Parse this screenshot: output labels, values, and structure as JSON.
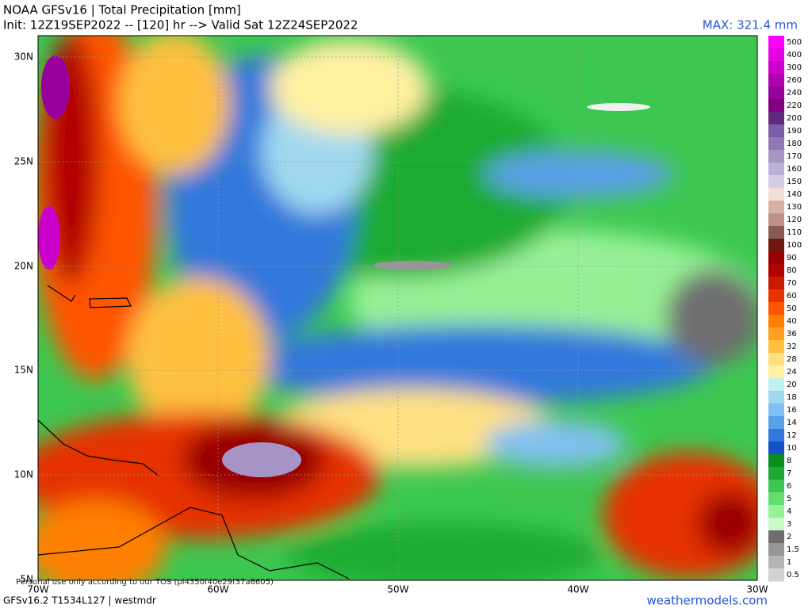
{
  "header": {
    "title": "NOAA GFSv16 | Total Precipitation [mm]",
    "subtitle": "Init: 12Z19SEP2022 -- [120] hr --> Valid Sat 12Z24SEP2022",
    "max": "MAX: 321.4 mm"
  },
  "lat_labels": [
    "30N",
    "25N",
    "20N",
    "15N",
    "10N",
    "5N"
  ],
  "lon_labels": [
    "70W",
    "60W",
    "50W",
    "40W",
    "30W"
  ],
  "colorbar": [
    {
      "label": "500",
      "color": "#ff00ff"
    },
    {
      "label": "400",
      "color": "#e600e6"
    },
    {
      "label": "300",
      "color": "#cc00cc"
    },
    {
      "label": "260",
      "color": "#b000b0"
    },
    {
      "label": "240",
      "color": "#990099"
    },
    {
      "label": "220",
      "color": "#800080"
    },
    {
      "label": "200",
      "color": "#5e2c7e"
    },
    {
      "label": "190",
      "color": "#7b5ea7"
    },
    {
      "label": "180",
      "color": "#8f79b5"
    },
    {
      "label": "170",
      "color": "#a694c6"
    },
    {
      "label": "160",
      "color": "#bcb0d6"
    },
    {
      "label": "150",
      "color": "#d4cce6"
    },
    {
      "label": "140",
      "color": "#f0ddd5"
    },
    {
      "label": "130",
      "color": "#d9b0a6"
    },
    {
      "label": "120",
      "color": "#c09088"
    },
    {
      "label": "110",
      "color": "#8a5a50"
    },
    {
      "label": "100",
      "color": "#6e1a10"
    },
    {
      "label": "90",
      "color": "#990000"
    },
    {
      "label": "80",
      "color": "#b30000"
    },
    {
      "label": "70",
      "color": "#cc1a00"
    },
    {
      "label": "60",
      "color": "#e63300"
    },
    {
      "label": "50",
      "color": "#ff5500"
    },
    {
      "label": "40",
      "color": "#ff7f00"
    },
    {
      "label": "36",
      "color": "#ffa020"
    },
    {
      "label": "32",
      "color": "#ffc040"
    },
    {
      "label": "28",
      "color": "#ffe080"
    },
    {
      "label": "24",
      "color": "#fff0a0"
    },
    {
      "label": "20",
      "color": "#c0f0f0"
    },
    {
      "label": "18",
      "color": "#a0d8f0"
    },
    {
      "label": "16",
      "color": "#80c0f0"
    },
    {
      "label": "14",
      "color": "#5aa0e8"
    },
    {
      "label": "12",
      "color": "#3278dc"
    },
    {
      "label": "10",
      "color": "#1450c8"
    },
    {
      "label": "8",
      "color": "#0a8c1e"
    },
    {
      "label": "7",
      "color": "#1eaa32"
    },
    {
      "label": "6",
      "color": "#3cc850"
    },
    {
      "label": "5",
      "color": "#64dc6e"
    },
    {
      "label": "4",
      "color": "#96f096"
    },
    {
      "label": "3",
      "color": "#c8fac8"
    },
    {
      "label": "2",
      "color": "#6e6e6e"
    },
    {
      "label": "1.5",
      "color": "#969696"
    },
    {
      "label": "1",
      "color": "#b4b4b4"
    },
    {
      "label": "0.5",
      "color": "#d2d2d2"
    }
  ],
  "footer": {
    "left": "GFSv16.2 T1534L127 | westmdr",
    "notice": "Personal use only according to our TOS (pl4350f40e29f37a6605)",
    "site": "weathermodels.com"
  }
}
